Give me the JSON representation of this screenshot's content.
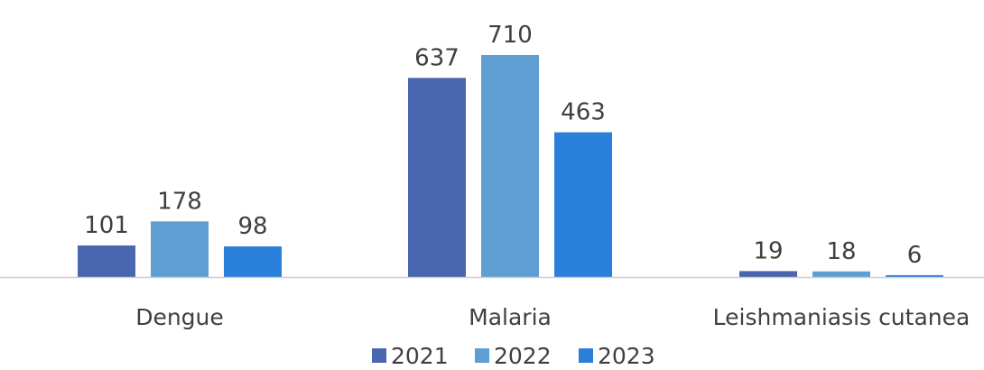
{
  "chart_data": {
    "type": "bar",
    "title": "",
    "xlabel": "",
    "ylabel": "",
    "categories": [
      "Dengue",
      "Malaria",
      "Leishmaniasis cutanea"
    ],
    "series": [
      {
        "name": "2021",
        "values": [
          101,
          637,
          19
        ],
        "color": "#4a66b0"
      },
      {
        "name": "2022",
        "values": [
          178,
          710,
          18
        ],
        "color": "#5e9ed3"
      },
      {
        "name": "2023",
        "values": [
          98,
          463,
          6
        ],
        "color": "#2a7fdb"
      }
    ],
    "ylim": [
      0,
      710
    ],
    "grid": false,
    "data_labels": true,
    "legend": "bottom",
    "axis_color": "#d0d0d0"
  }
}
